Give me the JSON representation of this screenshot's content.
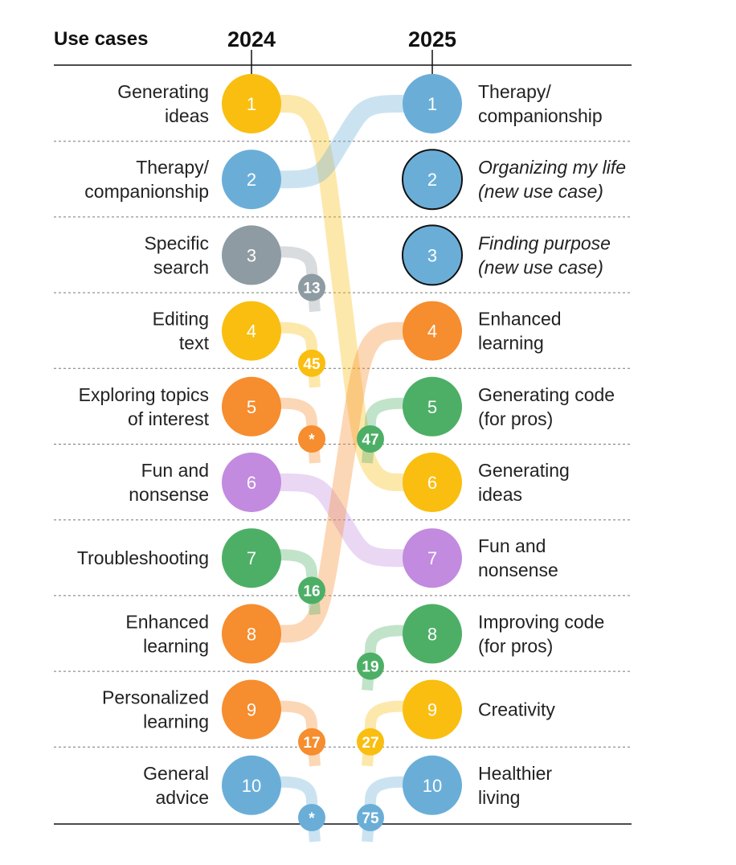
{
  "header": {
    "use_cases": "Use cases",
    "year_left": "2024",
    "year_right": "2025"
  },
  "colors": {
    "yellow": "#F9BE10",
    "blue": "#6AAED8",
    "gray": "#8E9BA3",
    "orange": "#F68D2E",
    "purple": "#C28BDF",
    "green": "#4DAF66"
  },
  "left": [
    {
      "rank": "1",
      "lines": [
        "Generating",
        "ideas"
      ],
      "color": "yellow"
    },
    {
      "rank": "2",
      "lines": [
        "Therapy/",
        "companionship"
      ],
      "color": "blue"
    },
    {
      "rank": "3",
      "lines": [
        "Specific",
        "search"
      ],
      "color": "gray"
    },
    {
      "rank": "4",
      "lines": [
        "Editing",
        "text"
      ],
      "color": "yellow"
    },
    {
      "rank": "5",
      "lines": [
        "Exploring topics",
        "of interest"
      ],
      "color": "orange"
    },
    {
      "rank": "6",
      "lines": [
        "Fun and",
        "nonsense"
      ],
      "color": "purple"
    },
    {
      "rank": "7",
      "lines": [
        "Troubleshooting"
      ],
      "color": "green"
    },
    {
      "rank": "8",
      "lines": [
        "Enhanced",
        "learning"
      ],
      "color": "orange"
    },
    {
      "rank": "9",
      "lines": [
        "Personalized",
        "learning"
      ],
      "color": "orange"
    },
    {
      "rank": "10",
      "lines": [
        "General",
        "advice"
      ],
      "color": "blue"
    }
  ],
  "right": [
    {
      "rank": "1",
      "lines": [
        "Therapy/",
        "companionship"
      ],
      "color": "blue",
      "new": false
    },
    {
      "rank": "2",
      "lines": [
        "Organizing my life",
        "(new use case)"
      ],
      "color": "blue",
      "new": true
    },
    {
      "rank": "3",
      "lines": [
        "Finding purpose",
        "(new use case)"
      ],
      "color": "blue",
      "new": true
    },
    {
      "rank": "4",
      "lines": [
        "Enhanced",
        "learning"
      ],
      "color": "orange",
      "new": false
    },
    {
      "rank": "5",
      "lines": [
        "Generating code",
        "(for pros)"
      ],
      "color": "green",
      "new": false
    },
    {
      "rank": "6",
      "lines": [
        "Generating",
        "ideas"
      ],
      "color": "yellow",
      "new": false
    },
    {
      "rank": "7",
      "lines": [
        "Fun and",
        "nonsense"
      ],
      "color": "purple",
      "new": false
    },
    {
      "rank": "8",
      "lines": [
        "Improving code",
        "(for pros)"
      ],
      "color": "green",
      "new": false
    },
    {
      "rank": "9",
      "lines": [
        "Creativity"
      ],
      "color": "yellow",
      "new": false
    },
    {
      "rank": "10",
      "lines": [
        "Healthier",
        "living"
      ],
      "color": "blue",
      "new": false
    }
  ],
  "links": [
    {
      "from": 1,
      "to": 6,
      "color": "yellow"
    },
    {
      "from": 2,
      "to": 1,
      "color": "blue"
    },
    {
      "from": 6,
      "to": 7,
      "color": "purple"
    },
    {
      "from": 8,
      "to": 4,
      "color": "orange"
    }
  ],
  "drops": [
    {
      "from": 3,
      "label": "13",
      "color": "gray"
    },
    {
      "from": 4,
      "label": "45",
      "color": "yellow"
    },
    {
      "from": 5,
      "label": "*",
      "color": "orange"
    },
    {
      "from": 7,
      "label": "16",
      "color": "green"
    },
    {
      "from": 9,
      "label": "17",
      "color": "orange"
    },
    {
      "from": 10,
      "label": "*",
      "color": "blue"
    }
  ],
  "rises": [
    {
      "to": 5,
      "label": "47",
      "color": "green"
    },
    {
      "to": 8,
      "label": "19",
      "color": "green"
    },
    {
      "to": 9,
      "label": "27",
      "color": "yellow"
    },
    {
      "to": 10,
      "label": "75",
      "color": "blue"
    }
  ]
}
